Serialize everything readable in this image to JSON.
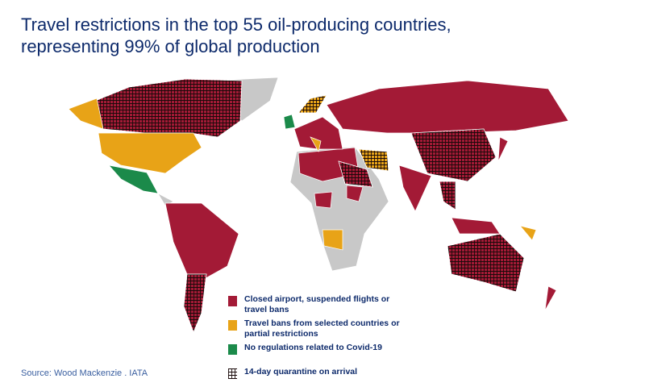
{
  "title_line1": "Travel restrictions in the top 55 oil-producing countries,",
  "title_line2": "representing 99% of global production",
  "source": "Source: Wood Mackenzie . IATA",
  "colors": {
    "closed": "#a31a36",
    "partial": "#e8a317",
    "none": "#1b8a4a",
    "other": "#c8c8c8",
    "title": "#0d2a6b"
  },
  "legend": [
    {
      "label_line1": "Closed airport, suspended flights or",
      "label_line2": "travel bans",
      "color": "#a31a36",
      "icon": "red-square"
    },
    {
      "label_line1": "Travel bans from selected countries or",
      "label_line2": "partial restrictions",
      "color": "#e8a317",
      "icon": "yellow-square"
    },
    {
      "label_line1": "No regulations related to Covid-19",
      "label_line2": "",
      "color": "#1b8a4a",
      "icon": "green-square"
    },
    {
      "label_line1": "14-day quarantine on arrival",
      "label_line2": "",
      "icon": "hatch-pattern"
    }
  ]
}
